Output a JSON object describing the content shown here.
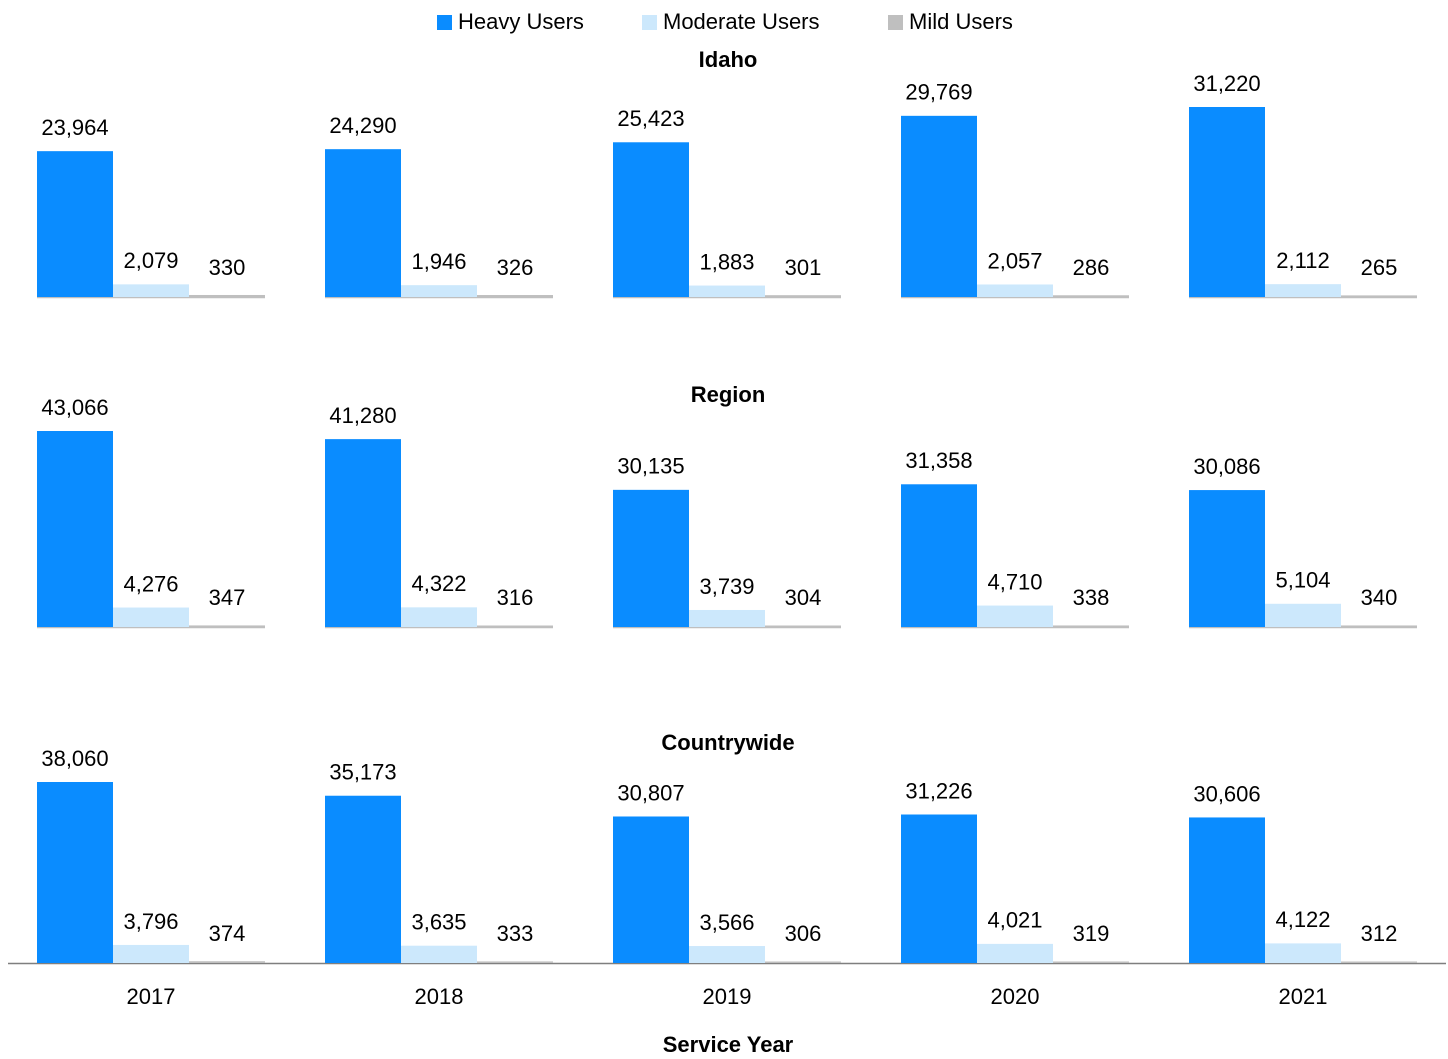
{
  "chart_data": [
    {
      "type": "bar",
      "title": "Idaho",
      "series": [
        {
          "name": "Heavy Users",
          "color": "#0a8cff",
          "values": [
            23964,
            24290,
            25423,
            29769,
            31220
          ],
          "value_labels": [
            "23,964",
            "24,290",
            "25,423",
            "29,769",
            "31,220"
          ]
        },
        {
          "name": "Moderate Users",
          "color": "#cce8fc",
          "values": [
            2079,
            1946,
            1883,
            2057,
            2112
          ],
          "value_labels": [
            "2,079",
            "1,946",
            "1,883",
            "2,057",
            "2,112"
          ]
        },
        {
          "name": "Mild Users",
          "color": "#bfbfbf",
          "values": [
            330,
            326,
            301,
            286,
            265
          ]
        }
      ]
    },
    {
      "type": "bar",
      "title": "Region",
      "series": [
        {
          "values": [
            43066,
            41280,
            30135,
            31358,
            30086
          ],
          "value_labels": [
            "43,066",
            "41,280",
            "30,135",
            "31,358",
            "30,086"
          ]
        },
        {
          "values": [
            4276,
            4322,
            3739,
            4710,
            5104
          ],
          "value_labels": [
            "4,276",
            "4,322",
            "3,739",
            "4,710",
            "5,104"
          ]
        },
        {
          "values": [
            347,
            316,
            304,
            338,
            340
          ]
        }
      ]
    },
    {
      "type": "bar",
      "title": "Countrywide",
      "x_label": "Service Year",
      "categories": [
        "2017",
        "2018",
        "2019",
        "2020",
        "2021"
      ],
      "series": [
        {
          "values": [
            38060,
            35173,
            30807,
            31226,
            30606
          ],
          "value_labels": [
            "38,060",
            "35,173",
            "30,807",
            "31,226",
            "30,606"
          ]
        },
        {
          "values": [
            3796,
            3635,
            3566,
            4021,
            4122
          ],
          "value_labels": [
            "3,796",
            "3,635",
            "3,566",
            "4,021",
            "4,122"
          ]
        },
        {
          "values": [
            374,
            333,
            306,
            319,
            312
          ]
        }
      ]
    }
  ]
}
